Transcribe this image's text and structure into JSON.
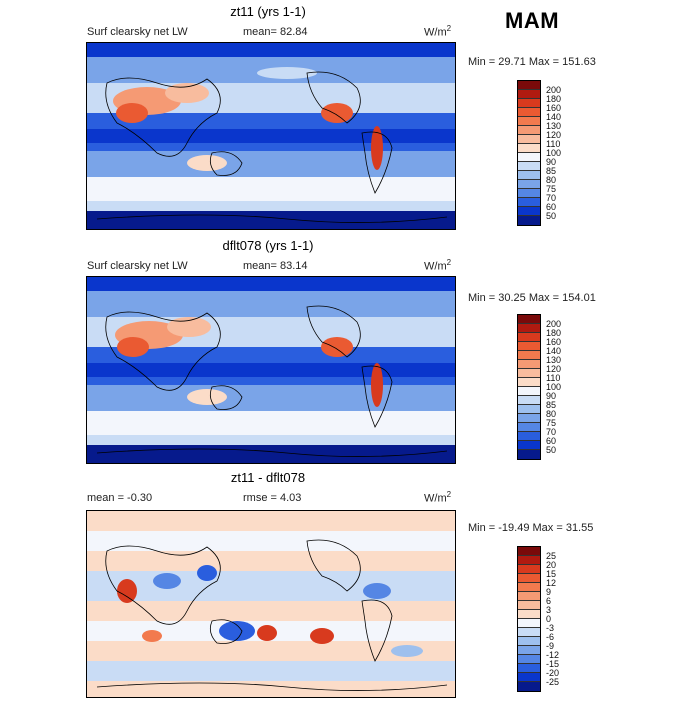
{
  "season": "MAM",
  "panels": [
    {
      "title": "zt11 (yrs 1-1)",
      "left_label": "Surf clearsky net LW",
      "stat1": "mean=   82.84",
      "stat2": "",
      "units": "W/m",
      "units_sup": "2",
      "minmax": "Min =  29.71 Max = 151.63",
      "colorbar_levels": [
        "200",
        "180",
        "160",
        "140",
        "130",
        "120",
        "110",
        "100",
        "90",
        "85",
        "80",
        "75",
        "70",
        "60",
        "50"
      ],
      "colorbar_colors": [
        "#7a0a0a",
        "#b01a10",
        "#d83a1e",
        "#ea5a32",
        "#f27a4e",
        "#f59a74",
        "#f8bc9e",
        "#fbdcc8",
        "#f3f6fc",
        "#c9dcf5",
        "#9ec0ee",
        "#7aa4e8",
        "#5586e4",
        "#2a5ede",
        "#0a36cc",
        "#061a8c"
      ]
    },
    {
      "title": "dflt078 (yrs 1-1)",
      "left_label": "Surf clearsky net LW",
      "stat1": "mean=   83.14",
      "stat2": "",
      "units": "W/m",
      "units_sup": "2",
      "minmax": "Min =  30.25 Max = 154.01",
      "colorbar_levels": [
        "200",
        "180",
        "160",
        "140",
        "130",
        "120",
        "110",
        "100",
        "90",
        "85",
        "80",
        "75",
        "70",
        "60",
        "50"
      ],
      "colorbar_colors": [
        "#7a0a0a",
        "#b01a10",
        "#d83a1e",
        "#ea5a32",
        "#f27a4e",
        "#f59a74",
        "#f8bc9e",
        "#fbdcc8",
        "#f3f6fc",
        "#c9dcf5",
        "#9ec0ee",
        "#7aa4e8",
        "#5586e4",
        "#2a5ede",
        "#0a36cc",
        "#061a8c"
      ]
    },
    {
      "title": "zt11 - dflt078",
      "left_label": "mean =   -0.30",
      "stat1": "rmse =    4.03",
      "stat2": "",
      "units": "W/m",
      "units_sup": "2",
      "minmax": "Min = -19.49 Max =  31.55",
      "colorbar_levels": [
        "25",
        "20",
        "15",
        "12",
        "9",
        "6",
        "3",
        "0",
        "-3",
        "-6",
        "-9",
        "-12",
        "-15",
        "-20",
        "-25"
      ],
      "colorbar_colors": [
        "#7a0a0a",
        "#b01a10",
        "#d83a1e",
        "#ea5a32",
        "#f27a4e",
        "#f59a74",
        "#f8bc9e",
        "#fbdcc8",
        "#f3f6fc",
        "#c9dcf5",
        "#9ec0ee",
        "#7aa4e8",
        "#5586e4",
        "#2a5ede",
        "#0a36cc",
        "#061a8c"
      ]
    }
  ]
}
